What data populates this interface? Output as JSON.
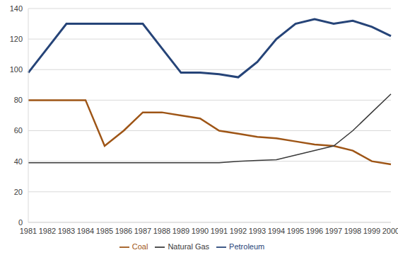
{
  "chart_data": {
    "type": "line",
    "categories": [
      "1981",
      "1982",
      "1983",
      "1984",
      "1985",
      "1986",
      "1987",
      "1988",
      "1989",
      "1990",
      "1991",
      "1992",
      "1993",
      "1994",
      "1995",
      "1996",
      "1997",
      "1998",
      "1999",
      "2000"
    ],
    "series": [
      {
        "name": "Petroleum",
        "color": "#264478",
        "values": [
          98,
          114,
          130,
          130,
          130,
          130,
          130,
          114,
          98,
          98,
          97,
          95,
          105,
          120,
          130,
          133,
          130,
          132,
          128,
          122
        ]
      },
      {
        "name": "Coal",
        "color": "#9e5516",
        "values": [
          80,
          80,
          80,
          80,
          50,
          60,
          72,
          72,
          70,
          68,
          60,
          58,
          56,
          55,
          53,
          51,
          50,
          47,
          40,
          38
        ]
      },
      {
        "name": "Natural Gas",
        "color": "#3a3a3a",
        "values": [
          39,
          39,
          39,
          39,
          39,
          39,
          39,
          39,
          39,
          39,
          39,
          40,
          40.5,
          41,
          44,
          47,
          50,
          60,
          72,
          84
        ]
      }
    ],
    "ylim": [
      0,
      140
    ],
    "yticks": [
      0,
      20,
      40,
      60,
      80,
      100,
      120,
      140
    ],
    "grid": true,
    "legend": "bottom",
    "marker": "none"
  }
}
